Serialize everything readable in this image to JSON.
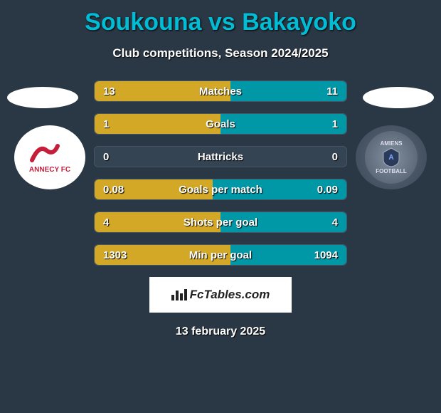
{
  "title": "Soukouna vs Bakayoko",
  "subtitle": "Club competitions, Season 2024/2025",
  "date": "13 february 2025",
  "attribution": "FcTables.com",
  "colors": {
    "title": "#00bcd4",
    "bar_left": "#d4a827",
    "bar_right": "#0097a7",
    "row_bg": "#354453",
    "page_bg": "#2a3744"
  },
  "teams": {
    "left": {
      "name": "ANNECY FC",
      "logo_color": "#c41e3a"
    },
    "right": {
      "name": "AMIENS FOOTBALL"
    }
  },
  "stats": [
    {
      "label": "Matches",
      "left_val": "13",
      "right_val": "11",
      "left_pct": 54,
      "right_pct": 46
    },
    {
      "label": "Goals",
      "left_val": "1",
      "right_val": "1",
      "left_pct": 50,
      "right_pct": 50
    },
    {
      "label": "Hattricks",
      "left_val": "0",
      "right_val": "0",
      "left_pct": 0,
      "right_pct": 0
    },
    {
      "label": "Goals per match",
      "left_val": "0.08",
      "right_val": "0.09",
      "left_pct": 47,
      "right_pct": 53
    },
    {
      "label": "Shots per goal",
      "left_val": "4",
      "right_val": "4",
      "left_pct": 50,
      "right_pct": 50
    },
    {
      "label": "Min per goal",
      "left_val": "1303",
      "right_val": "1094",
      "left_pct": 54,
      "right_pct": 46
    }
  ]
}
